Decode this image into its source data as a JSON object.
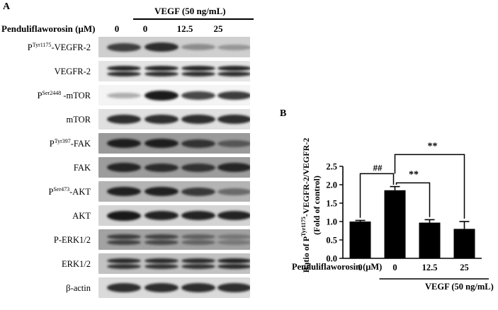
{
  "panelA": {
    "letter": "A",
    "vegf_label": "VEGF (50 ng/mL)",
    "treatment_label": "Penduliflaworosin (μM)",
    "lanes": [
      "0",
      "0",
      "12.5",
      "25"
    ],
    "blots": [
      {
        "prefix": "P",
        "sup": "Tyr1175",
        "suffix": "-VEGFR-2",
        "bg": "#cfcfcf",
        "intensity": [
          0.75,
          0.85,
          0.35,
          0.3
        ],
        "double": false
      },
      {
        "prefix": "",
        "sup": "",
        "suffix": "VEGFR-2",
        "bg": "#e4e4e4",
        "intensity": [
          0.9,
          0.9,
          0.9,
          0.9
        ],
        "double": true
      },
      {
        "prefix": "P",
        "sup": "Ser2448",
        "suffix": " -mTOR",
        "bg": "#f4f4f4",
        "intensity": [
          0.3,
          0.95,
          0.75,
          0.8
        ],
        "double": false
      },
      {
        "prefix": "",
        "sup": "",
        "suffix": "mTOR",
        "bg": "#e0e0e0",
        "intensity": [
          0.85,
          0.85,
          0.85,
          0.85
        ],
        "double": false
      },
      {
        "prefix": "P",
        "sup": "Tyr397",
        "suffix": "-FAK",
        "bg": "#9a9a9a",
        "intensity": [
          0.9,
          0.9,
          0.75,
          0.5
        ],
        "double": false
      },
      {
        "prefix": "",
        "sup": "",
        "suffix": "FAK",
        "bg": "#9c9c9c",
        "intensity": [
          0.85,
          0.8,
          0.75,
          0.85
        ],
        "double": false
      },
      {
        "prefix": "P",
        "sup": "Ser473",
        "suffix": "-AKT",
        "bg": "#b4b4b4",
        "intensity": [
          0.9,
          0.9,
          0.75,
          0.45
        ],
        "double": false
      },
      {
        "prefix": "",
        "sup": "",
        "suffix": "AKT",
        "bg": "#d4d4d4",
        "intensity": [
          0.95,
          0.9,
          0.9,
          0.9
        ],
        "double": false
      },
      {
        "prefix": "",
        "sup": "",
        "suffix": "P-ERK1/2",
        "bg": "#a2a2a2",
        "intensity": [
          0.7,
          0.65,
          0.45,
          0.3
        ],
        "double": true
      },
      {
        "prefix": "",
        "sup": "",
        "suffix": "ERK1/2",
        "bg": "#c2c2c2",
        "intensity": [
          0.85,
          0.85,
          0.85,
          0.9
        ],
        "double": true
      },
      {
        "prefix": "",
        "sup": "",
        "suffix": "β-actin",
        "bg": "#dadada",
        "intensity": [
          0.85,
          0.85,
          0.85,
          0.85
        ],
        "double": false
      }
    ]
  },
  "panelB": {
    "letter": "B",
    "treatment_label": "Penduliflaworosin (μM)",
    "vegf_label": "VEGF (50 ng/mL)"
  },
  "chart_data": {
    "type": "bar",
    "categories": [
      "0",
      "0",
      "12.5",
      "25"
    ],
    "values": [
      1.0,
      1.85,
      0.97,
      0.8
    ],
    "errors": [
      0.03,
      0.1,
      0.08,
      0.2
    ],
    "ylabel_line1_prefix": "Ratio of P",
    "ylabel_line1_sup": "Tyr1175",
    "ylabel_line1_suffix": "-VEGFR-2/VEGFR-2",
    "ylabel_line2": "(Fold of control)",
    "ylim": [
      0.0,
      2.5
    ],
    "yticks": [
      "0.0",
      "0.5",
      "1.0",
      "1.5",
      "2.0",
      "2.5"
    ],
    "annotations": [
      "##",
      "**",
      "**"
    ],
    "bar_color": "#000000"
  }
}
